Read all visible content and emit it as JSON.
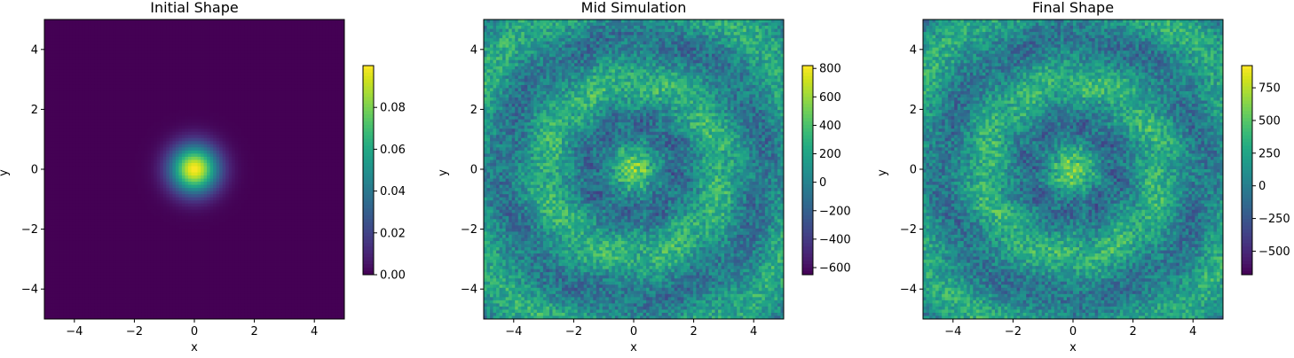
{
  "chart_data": [
    {
      "type": "heatmap",
      "title": "Initial Shape",
      "xlabel": "x",
      "ylabel": "y",
      "xlim": [
        -5,
        5
      ],
      "ylim": [
        -5,
        5
      ],
      "xticks": [
        "−4",
        "−2",
        "0",
        "2",
        "4"
      ],
      "yticks": [
        "−4",
        "−2",
        "0",
        "2",
        "4"
      ],
      "xtick_values": [
        -4,
        -2,
        0,
        2,
        4
      ],
      "ytick_values": [
        -4,
        -2,
        0,
        2,
        4
      ],
      "grid": false,
      "colormap": "viridis",
      "colorbar": {
        "range": [
          0,
          0.1
        ],
        "ticks": [
          "0.00",
          "0.02",
          "0.04",
          "0.06",
          "0.08"
        ],
        "tick_values": [
          0,
          0.02,
          0.04,
          0.06,
          0.08
        ]
      },
      "field": {
        "kind": "gaussian",
        "center": [
          0,
          0
        ],
        "sigma": 0.55,
        "peak": 0.1
      }
    },
    {
      "type": "heatmap",
      "title": "Mid Simulation",
      "xlabel": "x",
      "ylabel": "y",
      "xlim": [
        -5,
        5
      ],
      "ylim": [
        -5,
        5
      ],
      "xticks": [
        "−4",
        "−2",
        "0",
        "2",
        "4"
      ],
      "yticks": [
        "−4",
        "−2",
        "0",
        "2",
        "4"
      ],
      "xtick_values": [
        -4,
        -2,
        0,
        2,
        4
      ],
      "ytick_values": [
        -4,
        -2,
        0,
        2,
        4
      ],
      "grid": false,
      "colormap": "viridis",
      "colorbar": {
        "range": [
          -650,
          820
        ],
        "ticks": [
          "−600",
          "−400",
          "−200",
          "0",
          "200",
          "400",
          "600",
          "800"
        ],
        "tick_values": [
          -600,
          -400,
          -200,
          0,
          200,
          400,
          600,
          800
        ]
      },
      "field": {
        "kind": "radial-rings",
        "center": [
          0,
          0
        ],
        "min": -650,
        "max": 820
      }
    },
    {
      "type": "heatmap",
      "title": "Final Shape",
      "xlabel": "x",
      "ylabel": "y",
      "xlim": [
        -5,
        5
      ],
      "ylim": [
        -5,
        5
      ],
      "xticks": [
        "−4",
        "−2",
        "0",
        "2",
        "4"
      ],
      "yticks": [
        "−4",
        "−2",
        "0",
        "2",
        "4"
      ],
      "xtick_values": [
        -4,
        -2,
        0,
        2,
        4
      ],
      "ytick_values": [
        -4,
        -2,
        0,
        2,
        4
      ],
      "grid": false,
      "colormap": "viridis",
      "colorbar": {
        "range": [
          -680,
          920
        ],
        "ticks": [
          "−500",
          "−250",
          "0",
          "250",
          "500",
          "750"
        ],
        "tick_values": [
          -500,
          -250,
          0,
          250,
          500,
          750
        ]
      },
      "field": {
        "kind": "radial-rings",
        "center": [
          0,
          0
        ],
        "min": -680,
        "max": 920
      }
    }
  ]
}
